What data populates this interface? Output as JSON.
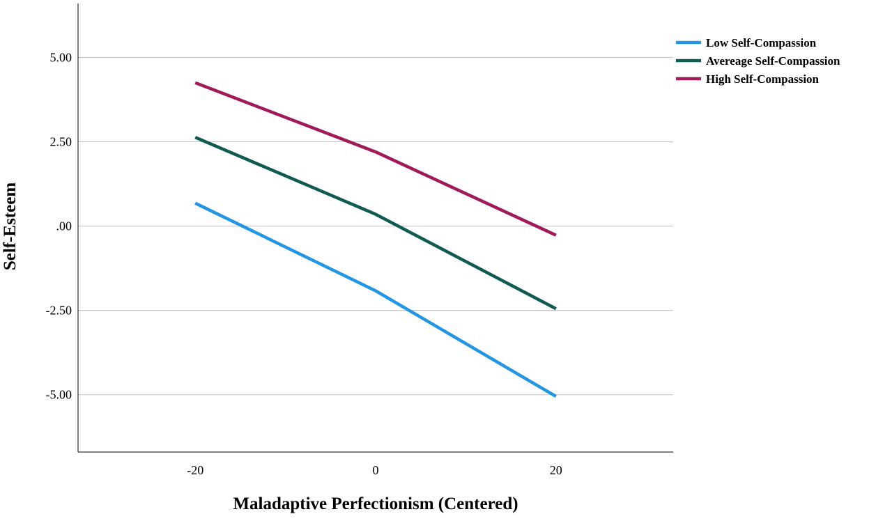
{
  "chart_data": {
    "type": "line",
    "title": "",
    "xlabel": "Maladaptive Perfectionism (Centered)",
    "ylabel": "Self-Esteem",
    "x": [
      -20,
      0,
      20
    ],
    "x_tick_values": [
      -20,
      0,
      20
    ],
    "x_tick_labels": [
      "-20",
      "0",
      "20"
    ],
    "xlim": [
      -33,
      33
    ],
    "y_tick_values": [
      5,
      2.5,
      0,
      -2.5,
      -5
    ],
    "y_tick_labels": [
      "5.00",
      "2.50",
      ".00",
      "-2.50",
      "-5.00"
    ],
    "ylim": [
      -6.7,
      6.6
    ],
    "grid": "horizontal",
    "legend_position": "top-right, outside plot",
    "series": [
      {
        "name": "Low Self-Compassion",
        "color": "#2196e6",
        "values": [
          0.68,
          -1.92,
          -5.05
        ]
      },
      {
        "name": "Avereage Self-Compassion",
        "color": "#0f5a53",
        "values": [
          2.63,
          0.35,
          -2.45
        ]
      },
      {
        "name": "High Self-Compassion",
        "color": "#a2195b",
        "values": [
          4.25,
          2.2,
          -0.27
        ]
      }
    ]
  }
}
